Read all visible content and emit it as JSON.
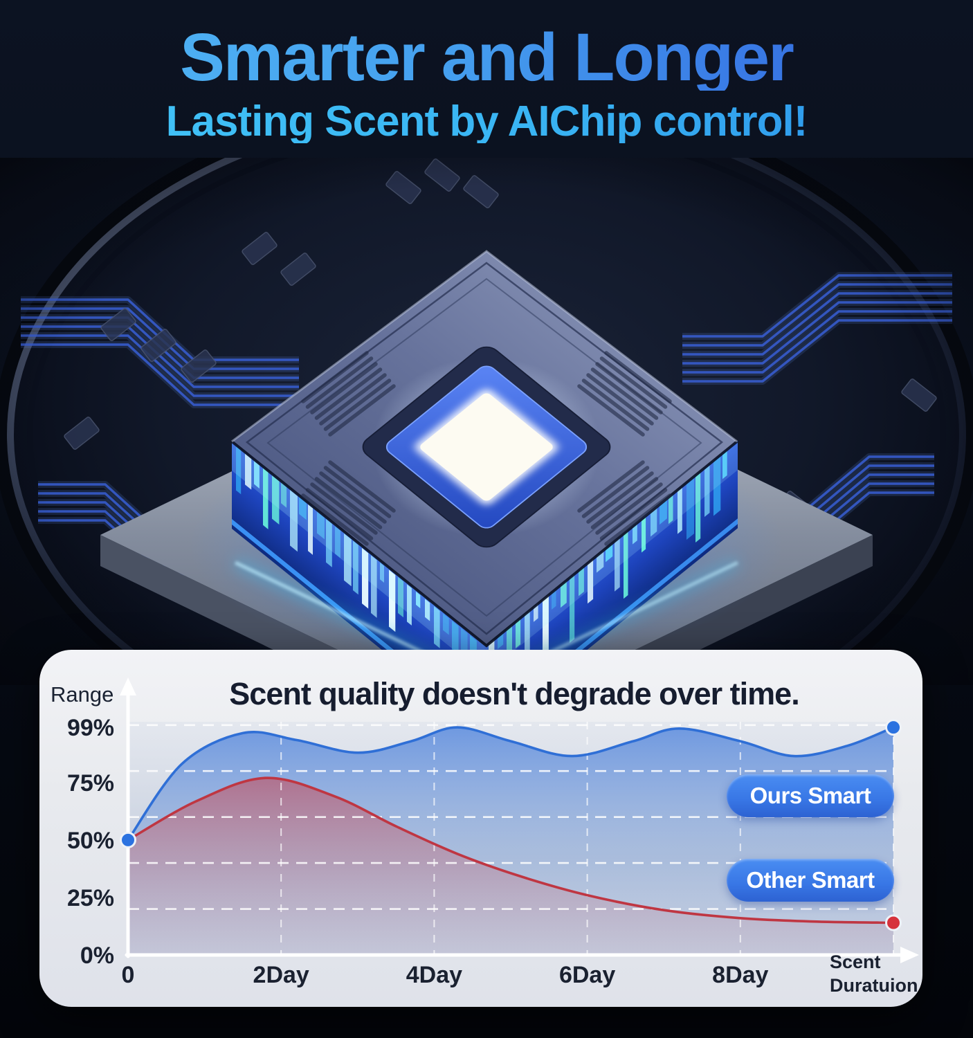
{
  "header": {
    "title_line1": "Smarter and Longer",
    "title_line2": "Lasting Scent by AIChip control!"
  },
  "colors": {
    "headline_gradient_start": "#52b9f5",
    "headline_gradient_end": "#2e5ed8",
    "subtitle_blue": "#3bbbf3",
    "pill_blue": "#3b7ce8",
    "line_blue": "#2f6fd6",
    "line_red": "#bf3642",
    "dot_blue": "#2b72e0",
    "dot_red": "#d6323c",
    "card_bg": "#eceef3",
    "background_dark": "#070b14",
    "chip_glow_cyan": "#49c8f8"
  },
  "chart_data": {
    "type": "area",
    "title": "Scent quality doesn't degrade over time.",
    "ylabel": "Range",
    "xlabel_lines": [
      "Scent",
      "Duratuion"
    ],
    "x_ticks": [
      "0",
      "2Day",
      "4Day",
      "6Day",
      "8Day"
    ],
    "x_tick_days": [
      0,
      2,
      4,
      6,
      8
    ],
    "y_ticks": [
      "99%",
      "75%",
      "50%",
      "25%",
      "0%"
    ],
    "y_tick_values": [
      99,
      75,
      50,
      25,
      0
    ],
    "y_gridline_values": [
      20,
      40,
      60,
      80,
      100
    ],
    "x_gridline_days": [
      2,
      4,
      6,
      8,
      10
    ],
    "xlim_days": [
      0,
      10
    ],
    "ylim": [
      0,
      100
    ],
    "grid": true,
    "legend_position": "right-middle",
    "legend": [
      {
        "label": "Ours Smart"
      },
      {
        "label": "Other Smart"
      }
    ],
    "series": [
      {
        "name": "Ours Smart",
        "color": "#2f6fd6",
        "points": [
          [
            0,
            50
          ],
          [
            0.7,
            83
          ],
          [
            1.5,
            96.5
          ],
          [
            2.2,
            93.5
          ],
          [
            3.0,
            88
          ],
          [
            3.7,
            93
          ],
          [
            4.3,
            99
          ],
          [
            5.0,
            93
          ],
          [
            5.8,
            86.5
          ],
          [
            6.6,
            93
          ],
          [
            7.2,
            98.5
          ],
          [
            8.0,
            93
          ],
          [
            8.7,
            86.5
          ],
          [
            9.4,
            91
          ],
          [
            10,
            99
          ]
        ],
        "start_dot": [
          0,
          50
        ],
        "end_dot": [
          10,
          99
        ]
      },
      {
        "name": "Other Smart",
        "color": "#bf3642",
        "points": [
          [
            0,
            50
          ],
          [
            0.9,
            67
          ],
          [
            1.8,
            77
          ],
          [
            2.7,
            69
          ],
          [
            3.5,
            56
          ],
          [
            4.3,
            44
          ],
          [
            5.1,
            34.5
          ],
          [
            6.0,
            26
          ],
          [
            7.0,
            19.5
          ],
          [
            8.0,
            16
          ],
          [
            9.0,
            14.5
          ],
          [
            10,
            14
          ]
        ],
        "end_dot": [
          10,
          14
        ]
      }
    ]
  }
}
